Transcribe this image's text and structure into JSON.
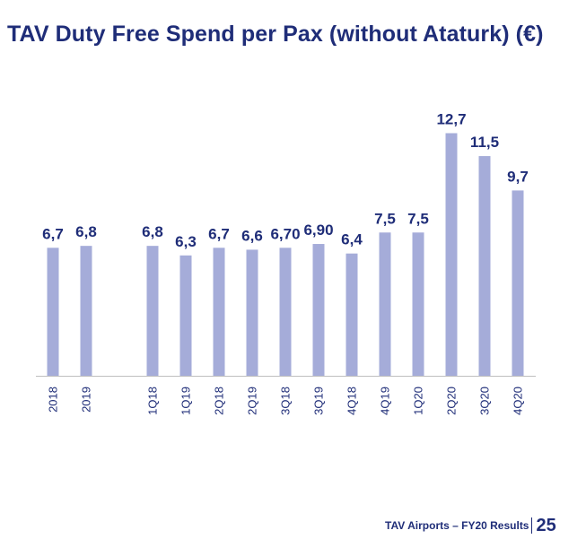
{
  "title": "TAV Duty Free Spend per Pax (without Ataturk) (€)",
  "footer": {
    "text": "TAV Airports – FY20  Results",
    "page": "25"
  },
  "colors": {
    "bar": "#a5acd9",
    "text": "#1f2d78",
    "axis": "#bfbfbf"
  },
  "chart_data": {
    "type": "bar",
    "title": "TAV Duty Free Spend per Pax (without Ataturk) (€)",
    "xlabel": "",
    "ylabel": "",
    "grid": false,
    "ylim": [
      0,
      15
    ],
    "categories": [
      "2018",
      "2019",
      "1Q18",
      "1Q19",
      "2Q18",
      "2Q19",
      "3Q18",
      "3Q19",
      "4Q18",
      "4Q19",
      "1Q20",
      "2Q20",
      "3Q20",
      "4Q20"
    ],
    "values": [
      6.7,
      6.8,
      6.8,
      6.3,
      6.7,
      6.6,
      6.7,
      6.9,
      6.4,
      7.5,
      7.5,
      12.7,
      11.5,
      9.7
    ],
    "data_labels": [
      "6,7",
      "6,8",
      "6,8",
      "6,3",
      "6,7",
      "6,6",
      "6,70",
      "6,90",
      "6,4",
      "7,5",
      "7,5",
      "12,7",
      "11,5",
      "9,7"
    ]
  }
}
